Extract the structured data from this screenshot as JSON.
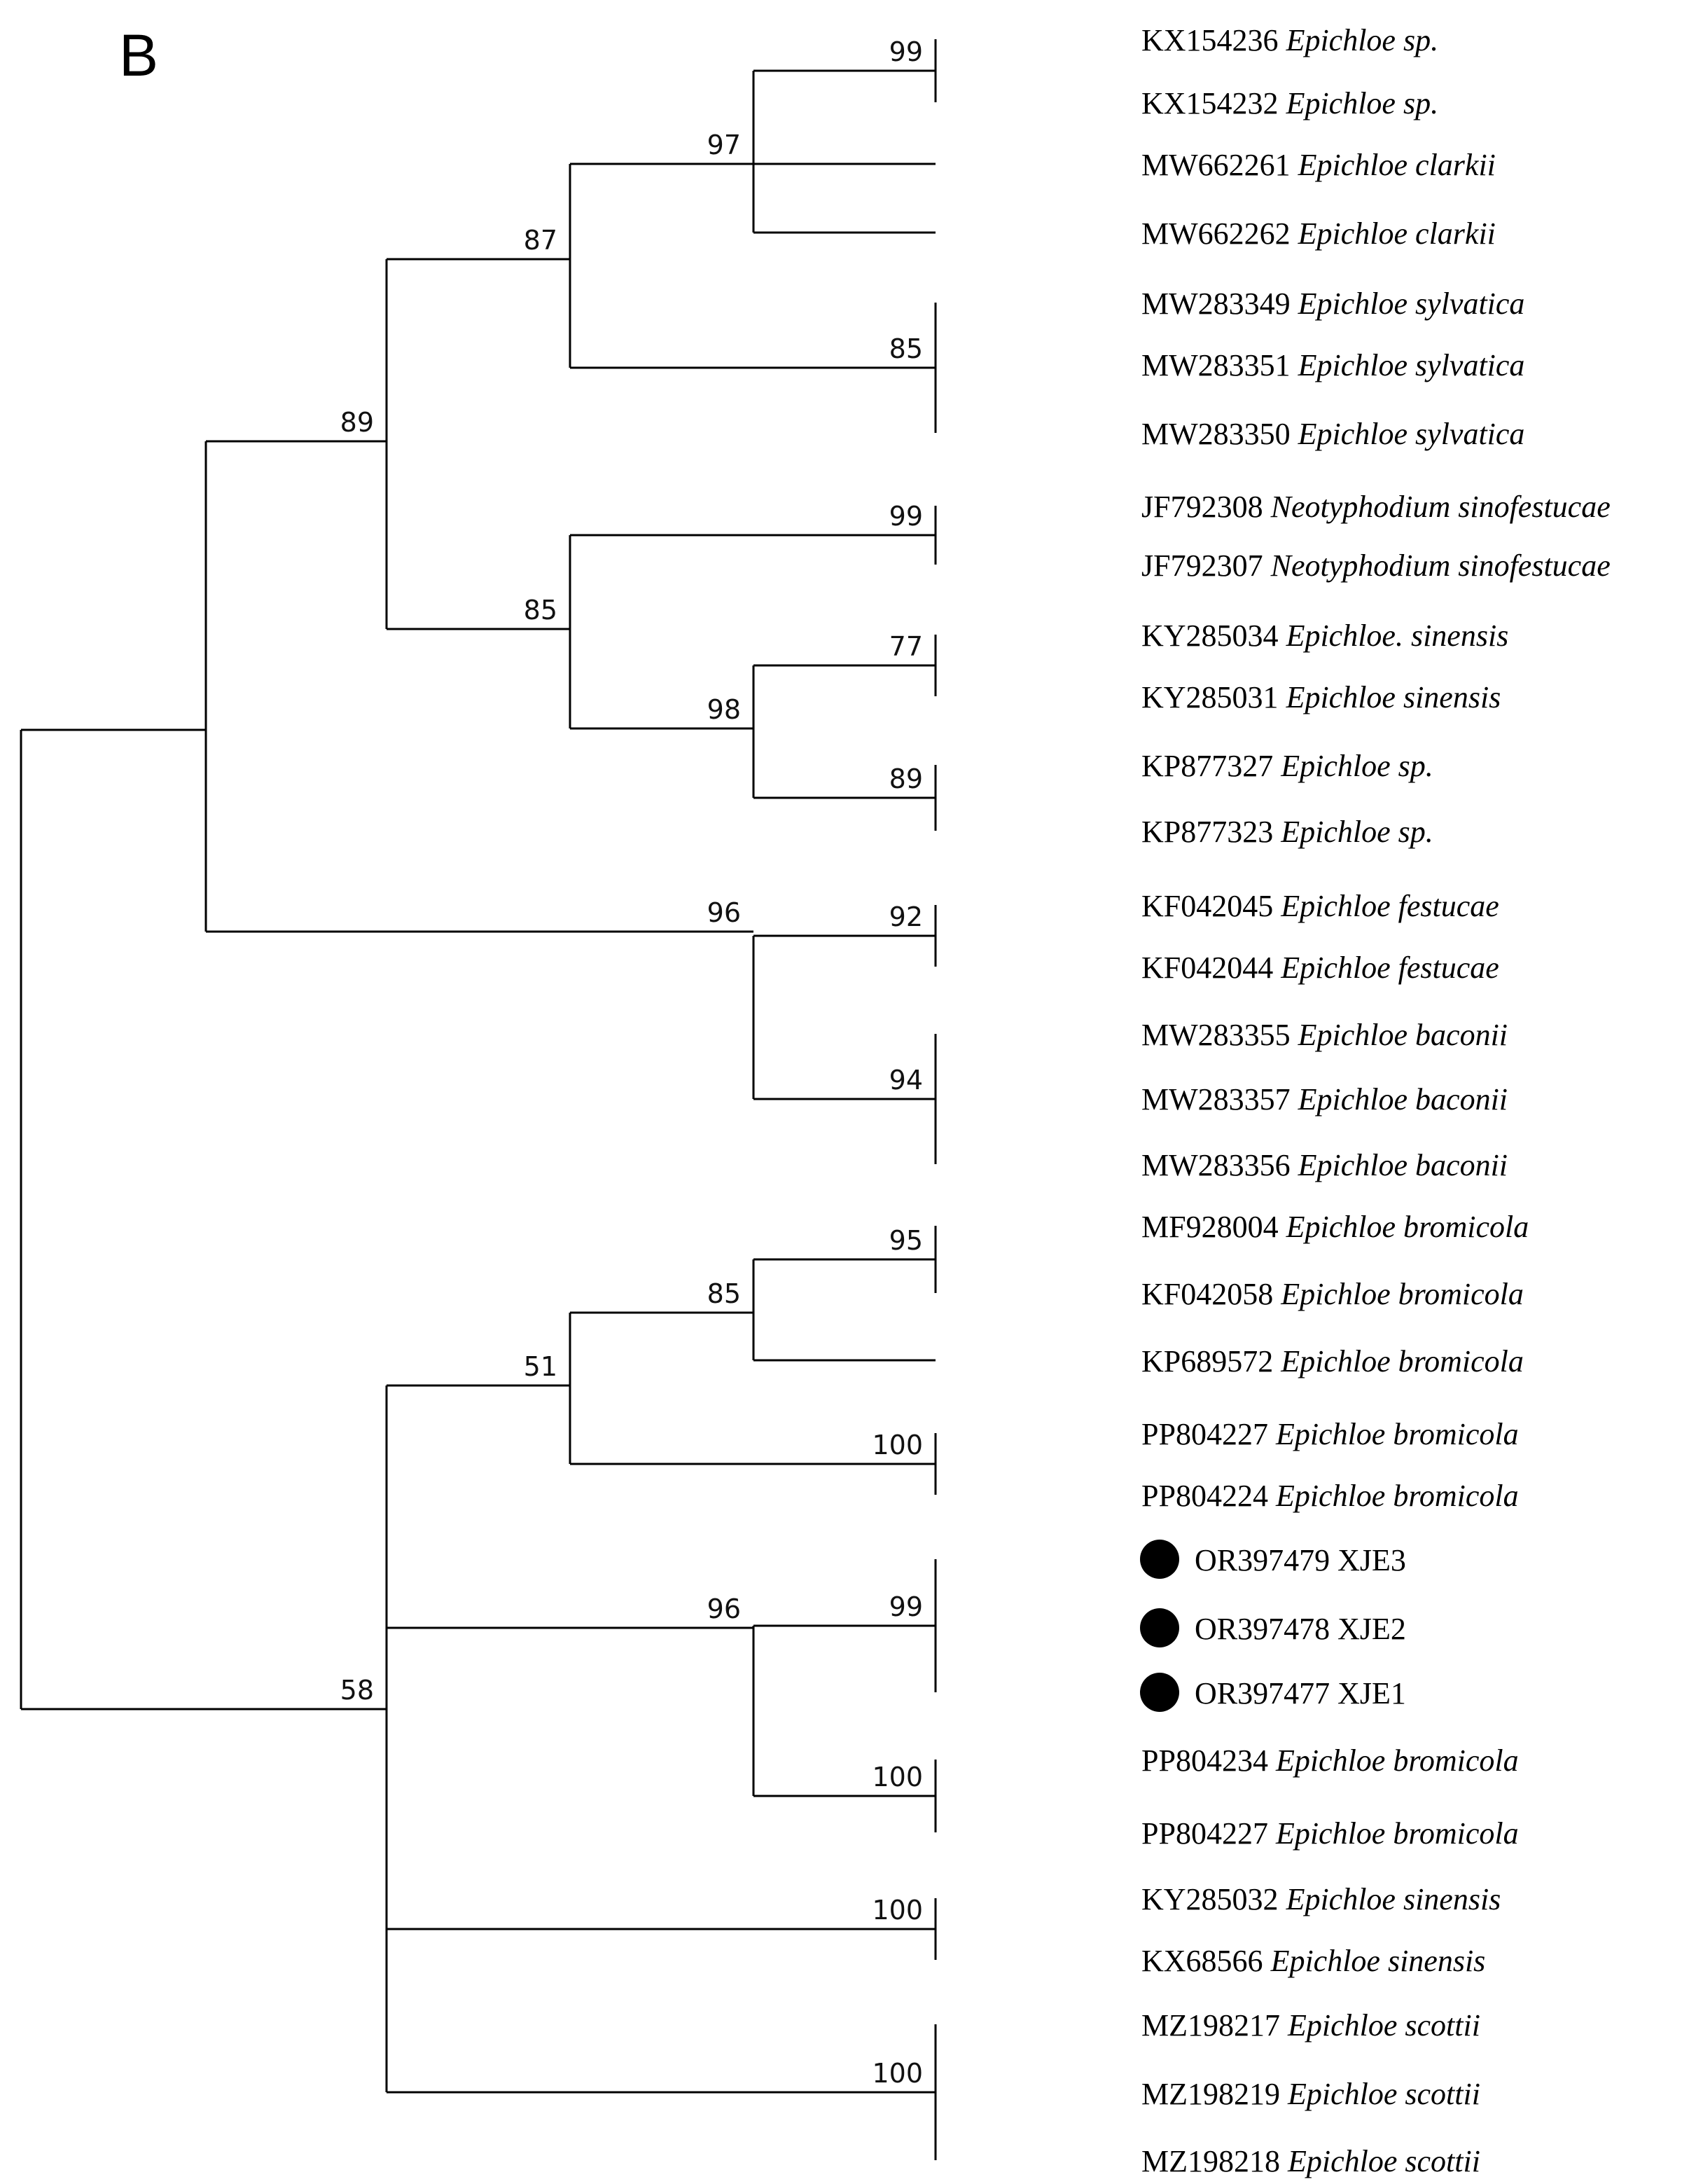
{
  "panel_label": "B",
  "bootstrap": {
    "n_kx": "99",
    "n_kx_clarkii": "97",
    "n_sylvatica": "85",
    "n_A": "87",
    "n_neo": "99",
    "n_kysin": "77",
    "n_kp": "89",
    "n_sin_kp": "98",
    "n_B": "85",
    "n_AB": "89",
    "n_fest": "92",
    "n_baconii": "94",
    "n_fest_bac": "96",
    "n_brom95": "95",
    "n_brom85": "85",
    "n_pp1": "100",
    "n_brom51": "51",
    "n_xje": "99",
    "n_pp2": "100",
    "n_xje_pp": "96",
    "n_sin2": "100",
    "n_scottii": "100",
    "n_root2": "58"
  },
  "taxa": [
    {
      "acc": "KX154236",
      "species": "Epichloe sp.",
      "marked": false
    },
    {
      "acc": "KX154232",
      "species": "Epichloe sp.",
      "marked": false
    },
    {
      "acc": "MW662261",
      "species": "Epichloe clarkii",
      "marked": false
    },
    {
      "acc": "MW662262",
      "species": "Epichloe clarkii",
      "marked": false
    },
    {
      "acc": "MW283349",
      "species": "Epichloe sylvatica",
      "marked": false
    },
    {
      "acc": "MW283351",
      "species": "Epichloe sylvatica",
      "marked": false
    },
    {
      "acc": "MW283350",
      "species": "Epichloe sylvatica",
      "marked": false
    },
    {
      "acc": "JF792308",
      "species": "Neotyphodium sinofestucae",
      "marked": false
    },
    {
      "acc": "JF792307",
      "species": "Neotyphodium sinofestucae",
      "marked": false
    },
    {
      "acc": "KY285034",
      "species": "Epichloe. sinensis",
      "marked": false
    },
    {
      "acc": "KY285031",
      "species": "Epichloe sinensis",
      "marked": false
    },
    {
      "acc": "KP877327",
      "species": "Epichloe sp.",
      "marked": false
    },
    {
      "acc": "KP877323",
      "species": "Epichloe sp.",
      "marked": false
    },
    {
      "acc": "KF042045",
      "species": "Epichloe festucae",
      "marked": false
    },
    {
      "acc": "KF042044",
      "species": "Epichloe festucae",
      "marked": false
    },
    {
      "acc": "MW283355",
      "species": "Epichloe baconii",
      "marked": false
    },
    {
      "acc": "MW283357",
      "species": "Epichloe baconii",
      "marked": false
    },
    {
      "acc": "MW283356",
      "species": "Epichloe baconii",
      "marked": false
    },
    {
      "acc": "MF928004",
      "species": "Epichloe bromicola",
      "marked": false
    },
    {
      "acc": "KF042058",
      "species": "Epichloe bromicola",
      "marked": false
    },
    {
      "acc": "KP689572",
      "species": "Epichloe bromicola",
      "marked": false
    },
    {
      "acc": "PP804227",
      "species": "Epichloe bromicola",
      "marked": false
    },
    {
      "acc": "PP804224",
      "species": "Epichloe bromicola",
      "marked": false
    },
    {
      "acc": "OR397479",
      "species": "XJE3",
      "marked": true
    },
    {
      "acc": "OR397478",
      "species": "XJE2",
      "marked": true
    },
    {
      "acc": "OR397477",
      "species": "XJE1",
      "marked": true
    },
    {
      "acc": "PP804234",
      "species": "Epichloe bromicola",
      "marked": false
    },
    {
      "acc": "PP804227",
      "species": "Epichloe bromicola",
      "marked": false
    },
    {
      "acc": "KY285032",
      "species": "Epichloe sinensis",
      "marked": false
    },
    {
      "acc": "KX68566",
      "species": "Epichloe sinensis",
      "marked": false
    },
    {
      "acc": "MZ198217",
      "species": "Epichloe scottii",
      "marked": false
    },
    {
      "acc": "MZ198219",
      "species": "Epichloe scottii",
      "marked": false
    },
    {
      "acc": "MZ198218",
      "species": "Epichloe scottii",
      "marked": false
    }
  ]
}
